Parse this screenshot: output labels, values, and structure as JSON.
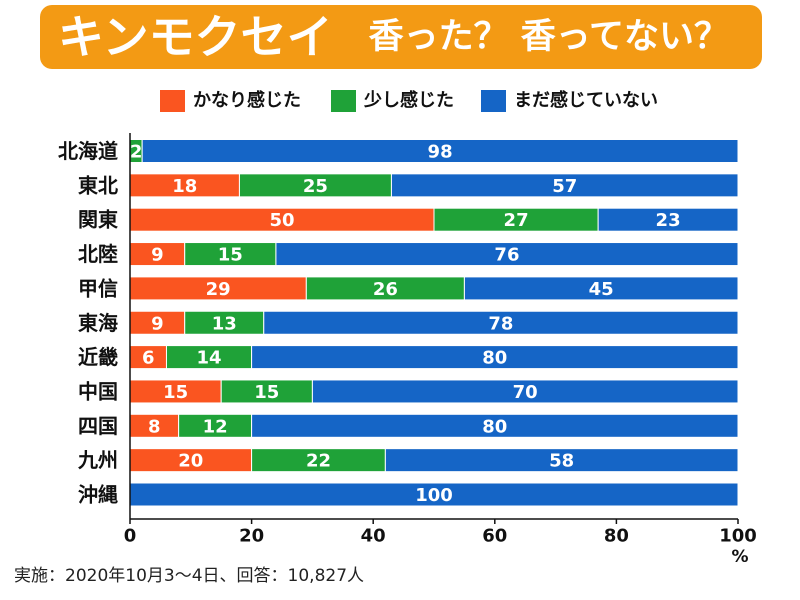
{
  "colors": {
    "banner": "#F39A14",
    "axis": "#111111",
    "label_text": "#ffffff"
  },
  "chart_data": {
    "type": "bar",
    "orientation": "horizontal",
    "stacked": true,
    "title": "キンモクセイ",
    "subtitle": "香った？ 香ってない？",
    "categories": [
      "北海道",
      "東北",
      "関東",
      "北陸",
      "甲信",
      "東海",
      "近畿",
      "中国",
      "四国",
      "九州",
      "沖縄"
    ],
    "series": [
      {
        "name": "かなり感じた",
        "color": "#FA5520",
        "values": [
          0,
          18,
          50,
          9,
          29,
          9,
          6,
          15,
          8,
          20,
          0
        ]
      },
      {
        "name": "少し感じた",
        "color": "#1FA238",
        "values": [
          2,
          25,
          27,
          15,
          26,
          13,
          14,
          15,
          12,
          22,
          0
        ]
      },
      {
        "name": "まだ感じていない",
        "color": "#1565C6",
        "values": [
          98,
          57,
          23,
          76,
          45,
          78,
          80,
          70,
          80,
          58,
          100
        ]
      }
    ],
    "xticks": [
      0,
      20,
      40,
      60,
      80,
      100
    ],
    "xlim": [
      0,
      100
    ],
    "xunit": "%",
    "legend_position": "top",
    "grid": false,
    "note": "実施：2020年10月3～4日、回答：10,827人"
  }
}
